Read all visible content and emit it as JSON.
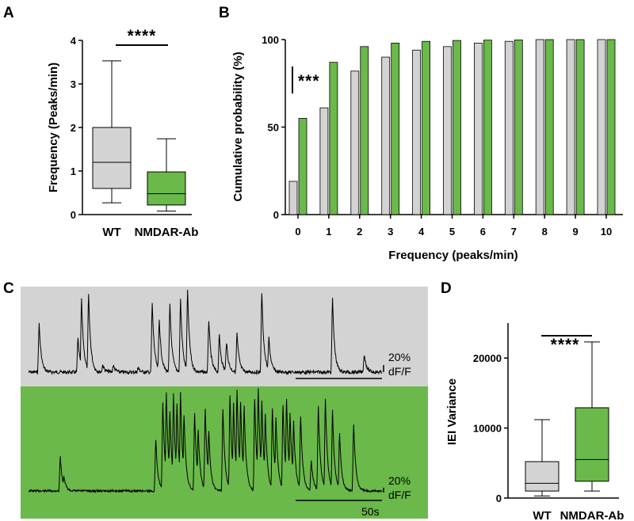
{
  "colors": {
    "wt": "#d3d3d3",
    "nmdar": "#6ab94a",
    "ink": "#000000"
  },
  "chart_data": [
    {
      "panel": "A",
      "type": "box",
      "ylabel": "Frequency (Peaks/min)",
      "ylim": [
        0,
        4
      ],
      "yticks": [
        0,
        1,
        2,
        3,
        4
      ],
      "significance": "****",
      "groups": [
        {
          "name": "WT",
          "min": 0.27,
          "q1": 0.6,
          "median": 1.2,
          "q3": 2.0,
          "max": 3.53
        },
        {
          "name": "NMDAR-Ab",
          "min": 0.08,
          "q1": 0.22,
          "median": 0.48,
          "q3": 0.98,
          "max": 1.74
        }
      ]
    },
    {
      "panel": "B",
      "type": "bar",
      "xlabel": "Frequency (peaks/min)",
      "ylabel": "Cumulative probability (%)",
      "ylim": [
        0,
        100
      ],
      "yticks": [
        0,
        50,
        100
      ],
      "significance": "***",
      "categories": [
        "0",
        "1",
        "2",
        "3",
        "4",
        "5",
        "6",
        "7",
        "8",
        "9",
        "10"
      ],
      "series": [
        {
          "values": [
            19,
            61,
            82,
            90,
            94,
            96,
            98,
            99,
            100,
            100,
            100
          ]
        },
        {
          "values": [
            55,
            87,
            96,
            98,
            99,
            99.5,
            99.7,
            99.8,
            100,
            100,
            100
          ]
        }
      ]
    },
    {
      "panel": "C",
      "type": "line",
      "scale_amplitude": "20%",
      "scale_unit": "dF/F",
      "scale_time": "50s",
      "series": [
        {
          "peaks": [
            [
              0.03,
              0.59
            ],
            [
              0.14,
              0.41
            ],
            [
              0.15,
              0.89
            ],
            [
              0.17,
              0.95
            ],
            [
              0.21,
              0.09
            ],
            [
              0.24,
              0.08
            ],
            [
              0.31,
              0.05
            ],
            [
              0.35,
              0.84
            ],
            [
              0.37,
              0.65
            ],
            [
              0.4,
              0.82
            ],
            [
              0.43,
              0.89
            ],
            [
              0.45,
              1.0
            ],
            [
              0.51,
              0.64
            ],
            [
              0.54,
              0.45
            ],
            [
              0.56,
              0.37
            ],
            [
              0.59,
              0.47
            ],
            [
              0.66,
              0.98
            ],
            [
              0.68,
              0.42
            ],
            [
              0.86,
              0.9
            ],
            [
              0.95,
              0.22
            ]
          ]
        },
        {
          "peaks": [
            [
              0.09,
              0.33
            ],
            [
              0.1,
              0.14
            ],
            [
              0.36,
              0.5
            ],
            [
              0.38,
              0.85
            ],
            [
              0.39,
              0.95
            ],
            [
              0.4,
              0.77
            ],
            [
              0.41,
              0.94
            ],
            [
              0.42,
              0.85
            ],
            [
              0.43,
              0.95
            ],
            [
              0.44,
              0.74
            ],
            [
              0.47,
              0.76
            ],
            [
              0.48,
              0.6
            ],
            [
              0.5,
              0.8
            ],
            [
              0.51,
              0.59
            ],
            [
              0.55,
              0.8
            ],
            [
              0.57,
              0.92
            ],
            [
              0.58,
              0.85
            ],
            [
              0.59,
              0.98
            ],
            [
              0.6,
              0.87
            ],
            [
              0.61,
              0.83
            ],
            [
              0.64,
              0.89
            ],
            [
              0.65,
              1.0
            ],
            [
              0.66,
              0.88
            ],
            [
              0.67,
              0.75
            ],
            [
              0.69,
              0.8
            ],
            [
              0.7,
              0.72
            ],
            [
              0.72,
              0.84
            ],
            [
              0.73,
              0.9
            ],
            [
              0.74,
              0.76
            ],
            [
              0.75,
              0.68
            ],
            [
              0.77,
              0.73
            ],
            [
              0.8,
              0.3
            ],
            [
              0.82,
              0.82
            ],
            [
              0.84,
              0.9
            ],
            [
              0.86,
              0.78
            ],
            [
              0.88,
              0.56
            ],
            [
              0.92,
              0.65
            ]
          ]
        }
      ]
    },
    {
      "panel": "D",
      "type": "box",
      "ylabel": "IEI Variance",
      "ylim": [
        0,
        25000
      ],
      "yticks": [
        0,
        10000,
        20000
      ],
      "significance": "****",
      "groups": [
        {
          "name": "WT",
          "min": 300,
          "q1": 1000,
          "median": 2100,
          "q3": 5200,
          "max": 11200
        },
        {
          "name": "NMDAR-Ab",
          "min": 1000,
          "q1": 2400,
          "median": 5500,
          "q3": 12900,
          "max": 22300
        }
      ]
    }
  ],
  "panels": {
    "a": "A",
    "b": "B",
    "c": "C",
    "d": "D"
  }
}
